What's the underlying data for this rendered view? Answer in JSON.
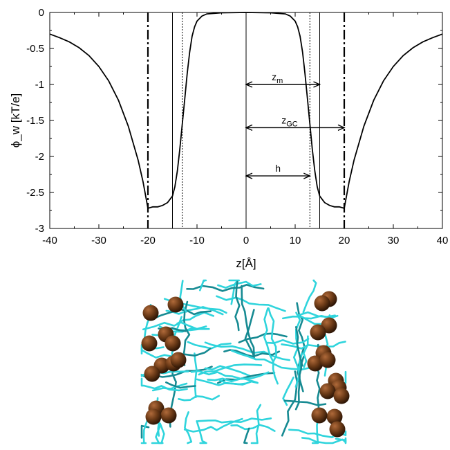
{
  "chart_data": {
    "type": "line",
    "xlabel": "z[Å]",
    "ylabel": "ϕ_w [kT/e]",
    "xlim": [
      -40,
      40
    ],
    "ylim": [
      -3,
      0
    ],
    "xticks": [
      -40,
      -30,
      -20,
      -10,
      0,
      10,
      20,
      30,
      40
    ],
    "yticks": [
      0,
      -0.5,
      -1,
      -1.5,
      -2,
      -2.5,
      -3
    ],
    "xtick_labels": [
      "-40",
      "-30",
      "-20",
      "-10",
      "0",
      "10",
      "20",
      "30",
      "40"
    ],
    "ytick_labels": [
      "0",
      "-0.5",
      "-1",
      "-1.5",
      "-2",
      "-2.5",
      "-3"
    ],
    "grid": false,
    "series": [
      {
        "x": [
          0,
          5,
          8,
          9,
          10,
          10.5,
          11,
          11.5,
          12,
          12.5,
          13,
          13.5,
          14,
          14.5,
          15,
          16,
          17,
          18,
          19,
          20,
          21,
          22,
          24,
          26,
          28,
          30,
          32,
          34,
          36,
          38,
          40
        ],
        "y": [
          0,
          -0.005,
          -0.02,
          -0.05,
          -0.12,
          -0.2,
          -0.33,
          -0.55,
          -0.85,
          -1.2,
          -1.55,
          -1.9,
          -2.2,
          -2.42,
          -2.55,
          -2.64,
          -2.68,
          -2.7,
          -2.7,
          -2.72,
          -2.35,
          -2.05,
          -1.58,
          -1.22,
          -0.95,
          -0.75,
          -0.6,
          -0.49,
          -0.41,
          -0.35,
          -0.3
        ]
      }
    ],
    "vertical_lines": [
      {
        "x": -20,
        "style": "dashdot"
      },
      {
        "x": 20,
        "style": "dashdot"
      },
      {
        "x": -15,
        "style": "solid"
      },
      {
        "x": 15,
        "style": "solid"
      },
      {
        "x": -13,
        "style": "dotted"
      },
      {
        "x": 13,
        "style": "dotted"
      },
      {
        "x": 0,
        "style": "solid"
      }
    ],
    "annotations": [
      {
        "text": "z",
        "sub": "m",
        "y": -1,
        "from": 0,
        "to": 15
      },
      {
        "text": "z",
        "sub": "GC",
        "y": -1.6,
        "from": 0,
        "to": 20
      },
      {
        "text": "h",
        "sub": "",
        "y": -2.27,
        "from": 0,
        "to": 13
      }
    ]
  },
  "bilayer_image": {
    "lipid_tail_color": "#2fd4dc",
    "lipid_tail_dark_color": "#168a92",
    "headgroup_color": "#6b3a17"
  }
}
